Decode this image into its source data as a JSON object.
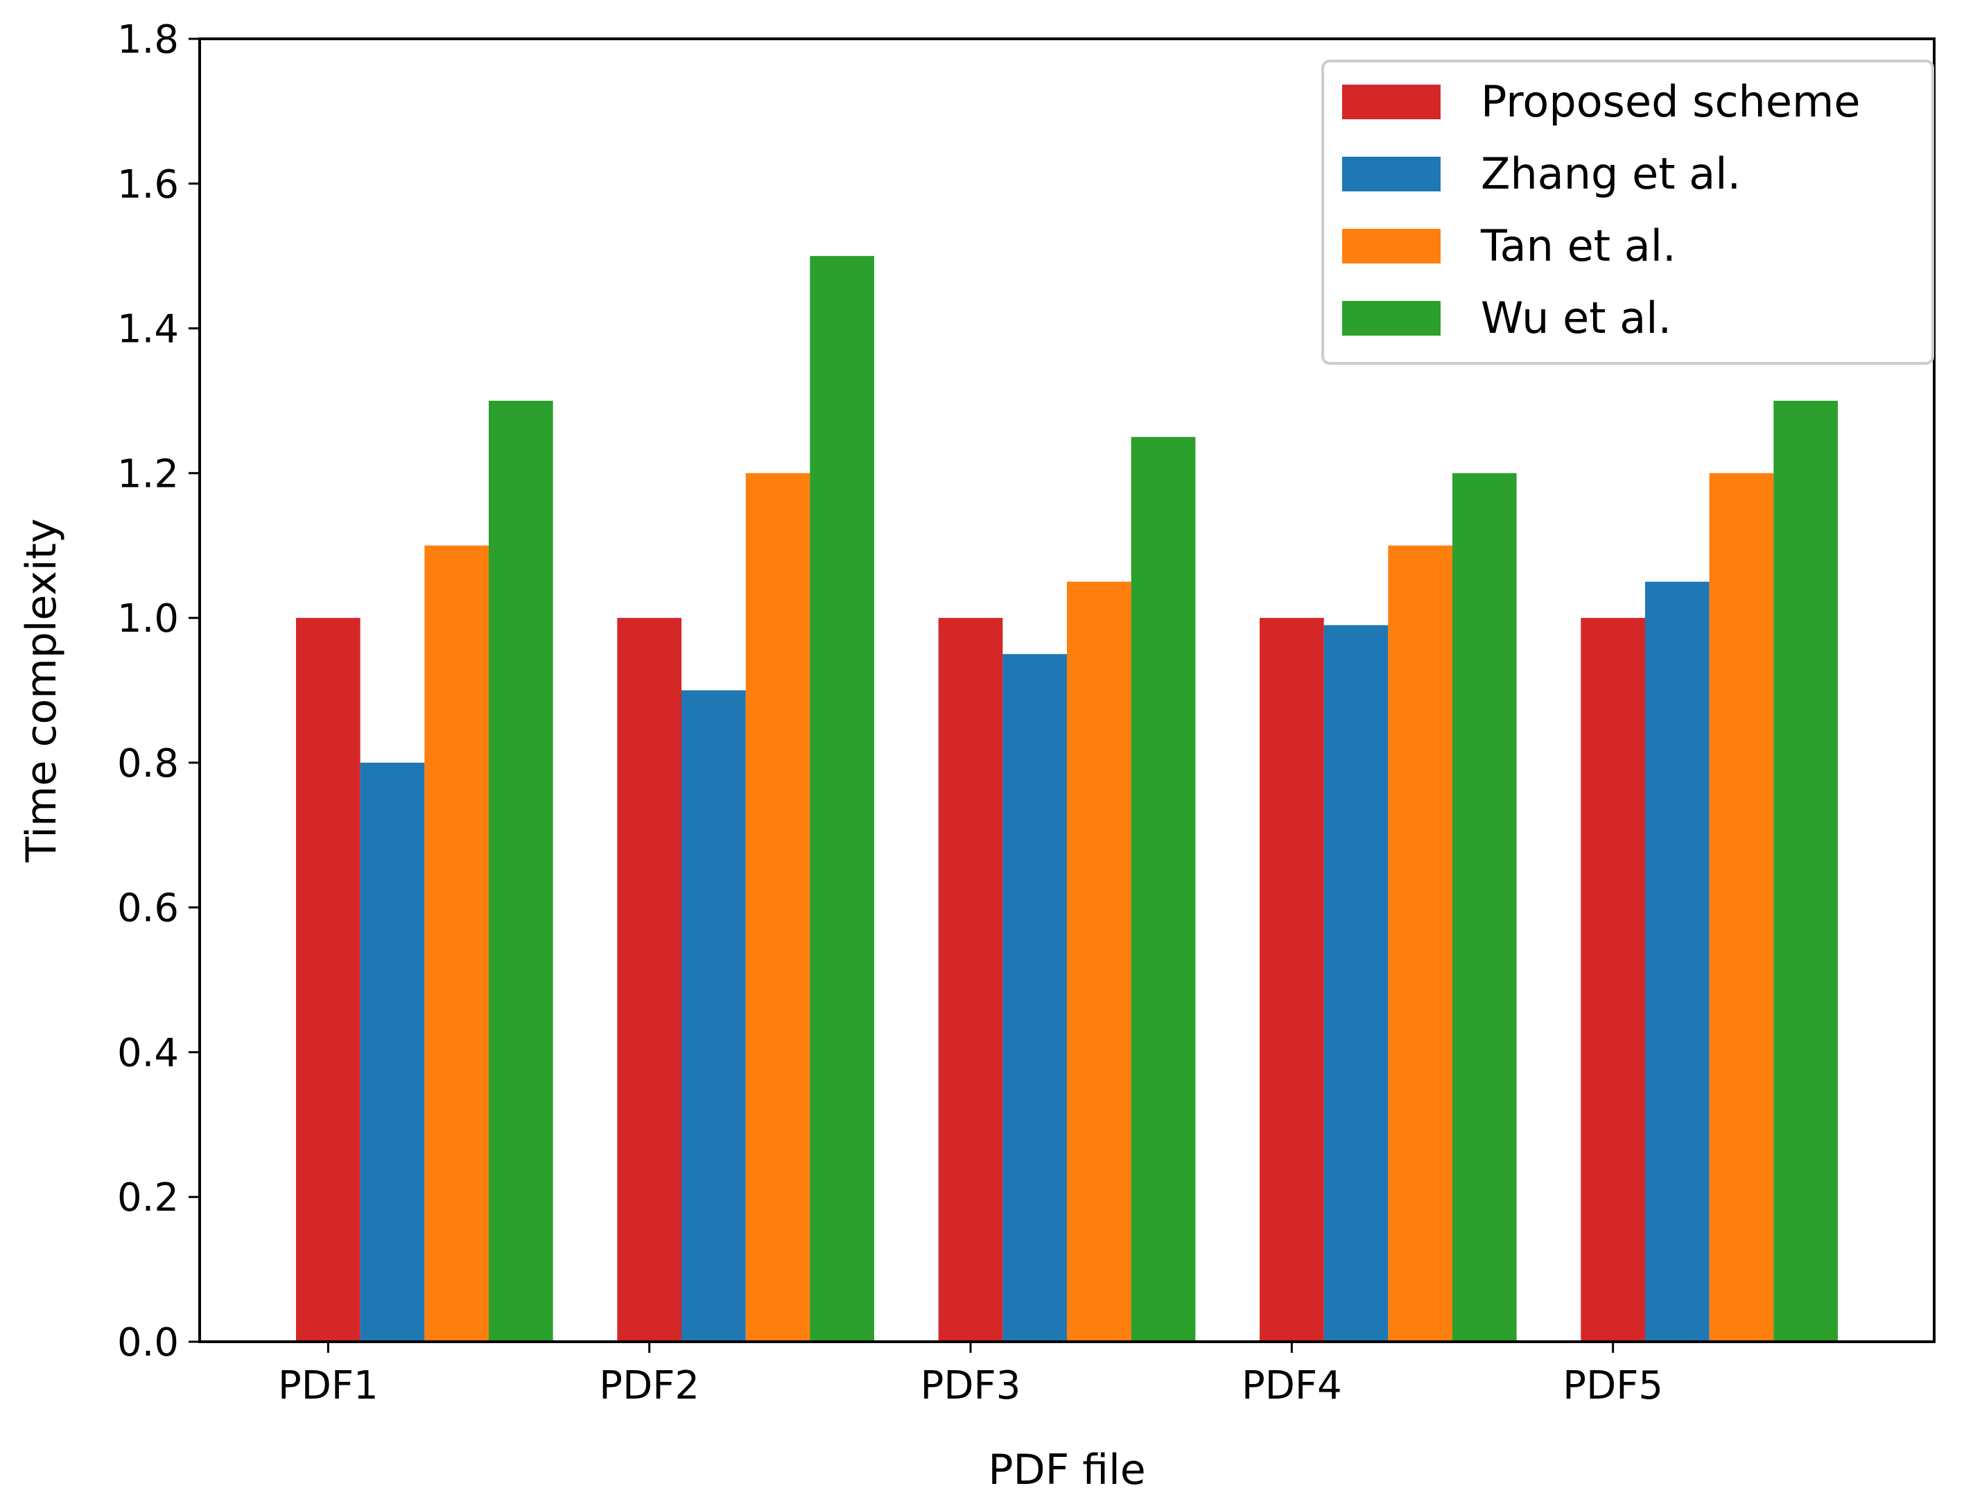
{
  "chart_data": {
    "type": "bar",
    "title": "",
    "xlabel": "PDF file",
    "ylabel": "Time complexity",
    "ylim": [
      0,
      1.8
    ],
    "yticks": [
      "0.0",
      "0.2",
      "0.4",
      "0.6",
      "0.8",
      "1.0",
      "1.2",
      "1.4",
      "1.6",
      "1.8"
    ],
    "categories": [
      "PDF1",
      "PDF2",
      "PDF3",
      "PDF4",
      "PDF5"
    ],
    "series": [
      {
        "name": "Proposed scheme",
        "color": "#d62728",
        "values": [
          1.0,
          1.0,
          1.0,
          1.0,
          1.0
        ]
      },
      {
        "name": "Zhang et al.",
        "color": "#1f77b4",
        "values": [
          0.8,
          0.9,
          0.95,
          0.99,
          1.05
        ]
      },
      {
        "name": "Tan et al.",
        "color": "#ff7f0e",
        "values": [
          1.1,
          1.2,
          1.05,
          1.1,
          1.2
        ]
      },
      {
        "name": "Wu et al.",
        "color": "#2ca02c",
        "values": [
          1.3,
          1.5,
          1.25,
          1.2,
          1.3
        ]
      }
    ],
    "legend_position": "top-right",
    "grid": false
  }
}
